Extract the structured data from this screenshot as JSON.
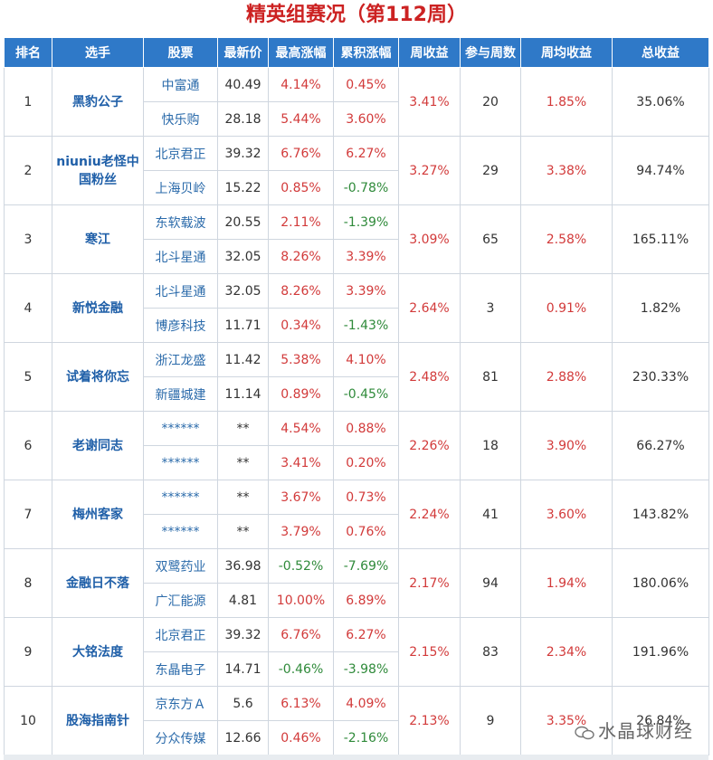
{
  "title": "精英组赛况（第112周）",
  "headers": [
    "排名",
    "选手",
    "股票",
    "最新价",
    "最高涨幅",
    "累积涨幅",
    "周收益",
    "参与周数",
    "周均收益",
    "总收益"
  ],
  "rows": [
    {
      "rank": "1",
      "player": "黑豹公子",
      "weekly": "3.41%",
      "weeks": "20",
      "avg": "1.85%",
      "total": "35.06%",
      "stocks": [
        {
          "name": "中富通",
          "price": "40.49",
          "high": "4.14%",
          "cum": "0.45%"
        },
        {
          "name": "快乐购",
          "price": "28.18",
          "high": "5.44%",
          "cum": "3.60%"
        }
      ]
    },
    {
      "rank": "2",
      "player": "niuniu老怪中国粉丝",
      "weekly": "3.27%",
      "weeks": "29",
      "avg": "3.38%",
      "total": "94.74%",
      "stocks": [
        {
          "name": "北京君正",
          "price": "39.32",
          "high": "6.76%",
          "cum": "6.27%"
        },
        {
          "name": "上海贝岭",
          "price": "15.22",
          "high": "0.85%",
          "cum": "-0.78%"
        }
      ]
    },
    {
      "rank": "3",
      "player": "寒江",
      "weekly": "3.09%",
      "weeks": "65",
      "avg": "2.58%",
      "total": "165.11%",
      "stocks": [
        {
          "name": "东软载波",
          "price": "20.55",
          "high": "2.11%",
          "cum": "-1.39%"
        },
        {
          "name": "北斗星通",
          "price": "32.05",
          "high": "8.26%",
          "cum": "3.39%"
        }
      ]
    },
    {
      "rank": "4",
      "player": "新悦金融",
      "weekly": "2.64%",
      "weeks": "3",
      "avg": "0.91%",
      "total": "1.82%",
      "stocks": [
        {
          "name": "北斗星通",
          "price": "32.05",
          "high": "8.26%",
          "cum": "3.39%"
        },
        {
          "name": "博彦科技",
          "price": "11.71",
          "high": "0.34%",
          "cum": "-1.43%"
        }
      ]
    },
    {
      "rank": "5",
      "player": "试着将你忘",
      "weekly": "2.48%",
      "weeks": "81",
      "avg": "2.88%",
      "total": "230.33%",
      "stocks": [
        {
          "name": "浙江龙盛",
          "price": "11.42",
          "high": "5.38%",
          "cum": "4.10%"
        },
        {
          "name": "新疆城建",
          "price": "11.14",
          "high": "0.89%",
          "cum": "-0.45%"
        }
      ]
    },
    {
      "rank": "6",
      "player": "老谢同志",
      "weekly": "2.26%",
      "weeks": "18",
      "avg": "3.90%",
      "total": "66.27%",
      "stocks": [
        {
          "name": "******",
          "price": "**",
          "high": "4.54%",
          "cum": "0.88%"
        },
        {
          "name": "******",
          "price": "**",
          "high": "3.41%",
          "cum": "0.20%"
        }
      ]
    },
    {
      "rank": "7",
      "player": "梅州客家",
      "weekly": "2.24%",
      "weeks": "41",
      "avg": "3.60%",
      "total": "143.82%",
      "stocks": [
        {
          "name": "******",
          "price": "**",
          "high": "3.67%",
          "cum": "0.73%"
        },
        {
          "name": "******",
          "price": "**",
          "high": "3.79%",
          "cum": "0.76%"
        }
      ]
    },
    {
      "rank": "8",
      "player": "金融日不落",
      "weekly": "2.17%",
      "weeks": "94",
      "avg": "1.94%",
      "total": "180.06%",
      "stocks": [
        {
          "name": "双鹭药业",
          "price": "36.98",
          "high": "-0.52%",
          "cum": "-7.69%"
        },
        {
          "name": "广汇能源",
          "price": "4.81",
          "high": "10.00%",
          "cum": "6.89%"
        }
      ]
    },
    {
      "rank": "9",
      "player": "大铭法度",
      "weekly": "2.15%",
      "weeks": "83",
      "avg": "2.34%",
      "total": "191.96%",
      "stocks": [
        {
          "name": "北京君正",
          "price": "39.32",
          "high": "6.76%",
          "cum": "6.27%"
        },
        {
          "name": "东晶电子",
          "price": "14.71",
          "high": "-0.46%",
          "cum": "-3.98%"
        }
      ]
    },
    {
      "rank": "10",
      "player": "股海指南针",
      "weekly": "2.13%",
      "weeks": "9",
      "avg": "3.35%",
      "total": "26.84%",
      "stocks": [
        {
          "name": "京东方Ａ",
          "price": "5.6",
          "high": "6.13%",
          "cum": "4.09%"
        },
        {
          "name": "分众传媒",
          "price": "12.66",
          "high": "0.46%",
          "cum": "-2.16%"
        }
      ]
    }
  ],
  "watermark": "水晶球财经",
  "colors": {
    "title": "#cc2222",
    "header_bg": "#2f79c8",
    "positive": "#d23a3a",
    "negative": "#2f8a3a",
    "player": "#1f5fa8"
  }
}
